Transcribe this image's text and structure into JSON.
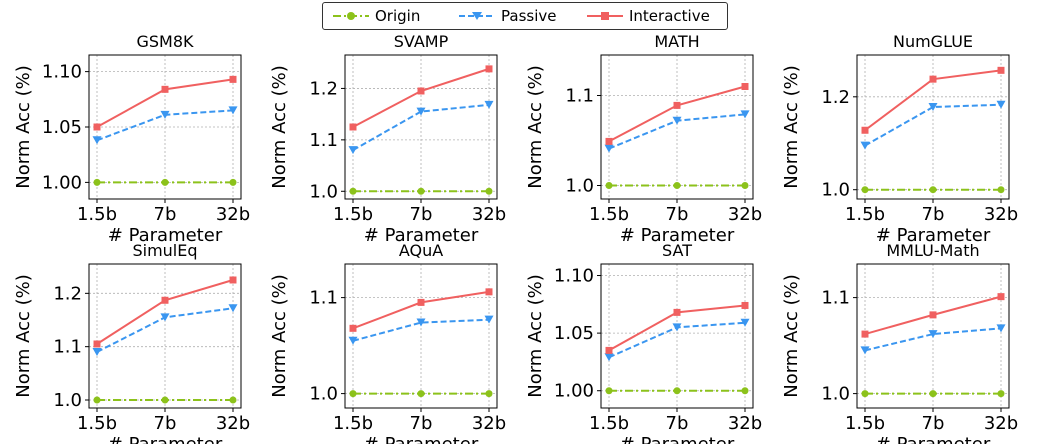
{
  "chart_data": {
    "type": "line",
    "legend": {
      "placement": "top-center",
      "entries": [
        {
          "key": "origin",
          "label": "Origin"
        },
        {
          "key": "passive",
          "label": "Passive"
        },
        {
          "key": "interactive",
          "label": "Interactive"
        }
      ]
    },
    "series_style": {
      "origin": {
        "color": "#8cc21b",
        "line": "dash-dot",
        "marker": "circle"
      },
      "passive": {
        "color": "#3a96f0",
        "line": "dashed",
        "marker": "triangle-down"
      },
      "interactive": {
        "color": "#f06060",
        "line": "solid",
        "marker": "square"
      }
    },
    "xlabel": "# Parameter",
    "ylabel": "Norm Acc (%)",
    "categories": [
      "1.5b",
      "7b",
      "32b"
    ],
    "grid": true,
    "panels": [
      {
        "title": "GSM8K",
        "ylim": [
          0.985,
          1.115
        ],
        "yticks": [
          "1.00",
          "1.05",
          "1.10"
        ],
        "tickvals": [
          1.0,
          1.05,
          1.1
        ],
        "series": {
          "origin": [
            1.0,
            1.0,
            1.0
          ],
          "passive": [
            1.038,
            1.061,
            1.065
          ],
          "interactive": [
            1.05,
            1.084,
            1.093
          ]
        }
      },
      {
        "title": "SVAMP",
        "ylim": [
          0.985,
          1.265
        ],
        "yticks": [
          "1.0",
          "1.1",
          "1.2"
        ],
        "tickvals": [
          1.0,
          1.1,
          1.2
        ],
        "series": {
          "origin": [
            1.0,
            1.0,
            1.0
          ],
          "passive": [
            1.08,
            1.155,
            1.168
          ],
          "interactive": [
            1.125,
            1.195,
            1.238
          ]
        }
      },
      {
        "title": "MATH",
        "ylim": [
          0.985,
          1.145
        ],
        "yticks": [
          "1.0",
          "1.1"
        ],
        "tickvals": [
          1.0,
          1.1
        ],
        "series": {
          "origin": [
            1.0,
            1.0,
            1.0
          ],
          "passive": [
            1.041,
            1.072,
            1.079
          ],
          "interactive": [
            1.049,
            1.089,
            1.11
          ]
        }
      },
      {
        "title": "NumGLUE",
        "ylim": [
          0.98,
          1.29
        ],
        "yticks": [
          "1.0",
          "1.2"
        ],
        "tickvals": [
          1.0,
          1.2
        ],
        "series": {
          "origin": [
            1.0,
            1.0,
            1.0
          ],
          "passive": [
            1.095,
            1.178,
            1.183
          ],
          "interactive": [
            1.128,
            1.238,
            1.257
          ]
        }
      },
      {
        "title": "SimulEq",
        "ylim": [
          0.985,
          1.255
        ],
        "yticks": [
          "1.0",
          "1.1",
          "1.2"
        ],
        "tickvals": [
          1.0,
          1.1,
          1.2
        ],
        "series": {
          "origin": [
            1.0,
            1.0,
            1.0
          ],
          "passive": [
            1.09,
            1.155,
            1.172
          ],
          "interactive": [
            1.105,
            1.187,
            1.225
          ]
        }
      },
      {
        "title": "AQuA",
        "ylim": [
          0.985,
          1.135
        ],
        "yticks": [
          "1.0",
          "1.1"
        ],
        "tickvals": [
          1.0,
          1.1
        ],
        "series": {
          "origin": [
            1.0,
            1.0,
            1.0
          ],
          "passive": [
            1.055,
            1.074,
            1.077
          ],
          "interactive": [
            1.068,
            1.095,
            1.106
          ]
        }
      },
      {
        "title": "SAT",
        "ylim": [
          0.985,
          1.11
        ],
        "yticks": [
          "1.00",
          "1.05",
          "1.10"
        ],
        "tickvals": [
          1.0,
          1.05,
          1.1
        ],
        "series": {
          "origin": [
            1.0,
            1.0,
            1.0
          ],
          "passive": [
            1.029,
            1.055,
            1.059
          ],
          "interactive": [
            1.035,
            1.068,
            1.074
          ]
        }
      },
      {
        "title": "MMLU-Math",
        "ylim": [
          0.985,
          1.135
        ],
        "yticks": [
          "1.0",
          "1.1"
        ],
        "tickvals": [
          1.0,
          1.1
        ],
        "series": {
          "origin": [
            1.0,
            1.0,
            1.0
          ],
          "passive": [
            1.045,
            1.062,
            1.068
          ],
          "interactive": [
            1.062,
            1.082,
            1.101
          ]
        }
      }
    ]
  }
}
